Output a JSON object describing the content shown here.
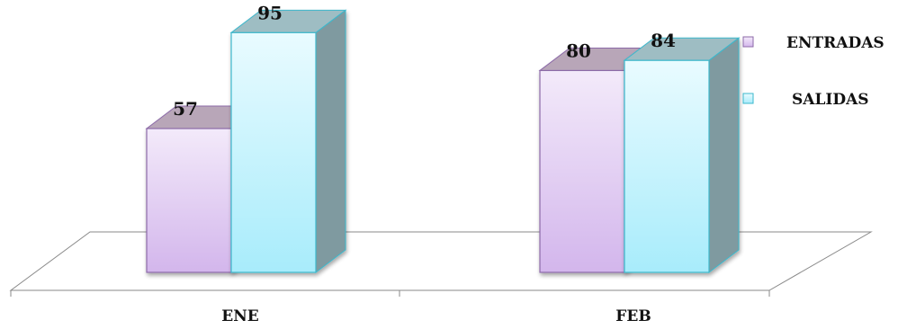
{
  "chart_data": {
    "type": "bar",
    "categories": [
      "ENE",
      "FEB"
    ],
    "series": [
      {
        "name": "ENTRADAS",
        "values": [
          57,
          80
        ]
      },
      {
        "name": "SALIDAS",
        "values": [
          95,
          84
        ]
      }
    ],
    "title": "",
    "xlabel": "",
    "ylabel": "",
    "ylim": [
      0,
      100
    ],
    "grid": false,
    "legend_position": "right",
    "colors": {
      "ENTRADAS": {
        "front_top": "#f3eafa",
        "front_bottom": "#d3b6ec",
        "side": "#8d8a98",
        "top": "#b8a6b8",
        "edge": "#8c6aa8"
      },
      "SALIDAS": {
        "front_top": "#e9fbff",
        "front_bottom": "#a8ecfb",
        "side": "#7f9aa0",
        "top": "#9ebdc3",
        "edge": "#3cb8cc"
      }
    }
  }
}
